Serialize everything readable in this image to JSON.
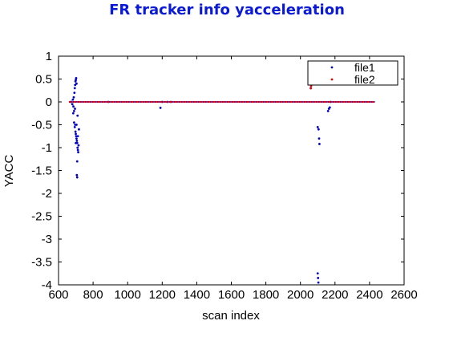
{
  "chart_data": {
    "type": "scatter",
    "title": "FR tracker info yacceleration",
    "xlabel": "scan index",
    "ylabel": "YACC",
    "xlim": [
      600,
      2600
    ],
    "ylim": [
      -4,
      1
    ],
    "xticks": [
      600,
      800,
      1000,
      1200,
      1400,
      1600,
      1800,
      2000,
      2200,
      2400,
      2600
    ],
    "yticks": [
      1,
      0.5,
      0,
      -0.5,
      -1,
      -1.5,
      -2,
      -2.5,
      -3,
      -3.5,
      -4
    ],
    "grid": false,
    "legend_position": "top-right",
    "colors": {
      "title": "#0a1ad6",
      "file1": "#0000cc",
      "file2": "#ee0000"
    },
    "series": [
      {
        "name": "file1",
        "points": [
          [
            670,
            0
          ],
          [
            675,
            0
          ],
          [
            680,
            -0.05
          ],
          [
            683,
            0.05
          ],
          [
            686,
            -0.1
          ],
          [
            688,
            0.1
          ],
          [
            690,
            -0.2
          ],
          [
            692,
            0.2
          ],
          [
            694,
            0.3
          ],
          [
            696,
            0.37
          ],
          [
            698,
            0.45
          ],
          [
            700,
            0.48
          ],
          [
            702,
            0.52
          ],
          [
            704,
            0.4
          ],
          [
            694,
            -0.55
          ],
          [
            696,
            -0.5
          ],
          [
            698,
            -0.65
          ],
          [
            700,
            -0.7
          ],
          [
            702,
            -0.75
          ],
          [
            704,
            -0.8
          ],
          [
            706,
            -0.85
          ],
          [
            708,
            -0.9
          ],
          [
            710,
            -1.0
          ],
          [
            712,
            -1.05
          ],
          [
            714,
            -1.1
          ],
          [
            716,
            -0.95
          ],
          [
            718,
            -0.6
          ],
          [
            710,
            -0.3
          ],
          [
            708,
            -1.3
          ],
          [
            706,
            -1.6
          ],
          [
            708,
            -1.65
          ],
          [
            704,
            -0.5
          ],
          [
            700,
            -0.9
          ],
          [
            712,
            -0.75
          ],
          [
            690,
            -0.45
          ],
          [
            685,
            -0.25
          ],
          [
            695,
            -0.15
          ],
          [
            888,
            0
          ],
          [
            1190,
            -0.13
          ],
          [
            1200,
            0
          ],
          [
            1230,
            0
          ],
          [
            1250,
            0
          ],
          [
            2060,
            0.3
          ],
          [
            2100,
            -0.55
          ],
          [
            2105,
            -0.6
          ],
          [
            2108,
            -0.8
          ],
          [
            2110,
            -0.92
          ],
          [
            2100,
            -3.75
          ],
          [
            2102,
            -3.85
          ],
          [
            2104,
            -3.95
          ],
          [
            2160,
            -0.2
          ],
          [
            2165,
            -0.15
          ],
          [
            2170,
            -0.12
          ],
          [
            2175,
            0
          ]
        ],
        "baseline": {
          "x_from": 670,
          "x_to": 2430,
          "y": 0
        }
      },
      {
        "name": "file2",
        "points": [
          [
            2060,
            0.3
          ],
          [
            2062,
            0.35
          ]
        ],
        "baseline": {
          "x_from": 660,
          "x_to": 2430,
          "y": 0
        }
      }
    ]
  }
}
